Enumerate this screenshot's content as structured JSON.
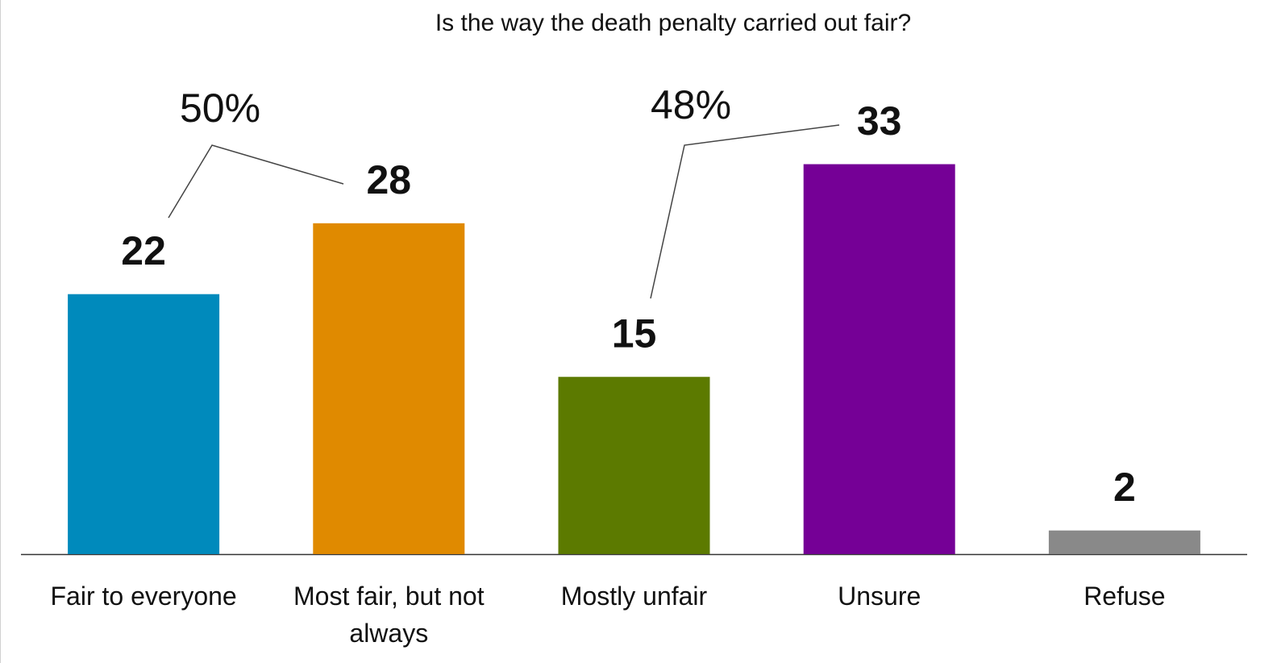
{
  "chart_data": {
    "type": "bar",
    "title": "Is the way the death penalty carried out fair?",
    "categories": [
      "Fair to everyone",
      "Most fair, but not always",
      "Mostly unfair",
      "Unsure",
      "Refuse"
    ],
    "values": [
      22,
      28,
      15,
      33,
      2
    ],
    "colors": [
      "#008abc",
      "#e08a00",
      "#5c7a00",
      "#750096",
      "#898989"
    ],
    "ylim": [
      0,
      40
    ],
    "annotations": [
      "50%",
      "48%"
    ]
  }
}
